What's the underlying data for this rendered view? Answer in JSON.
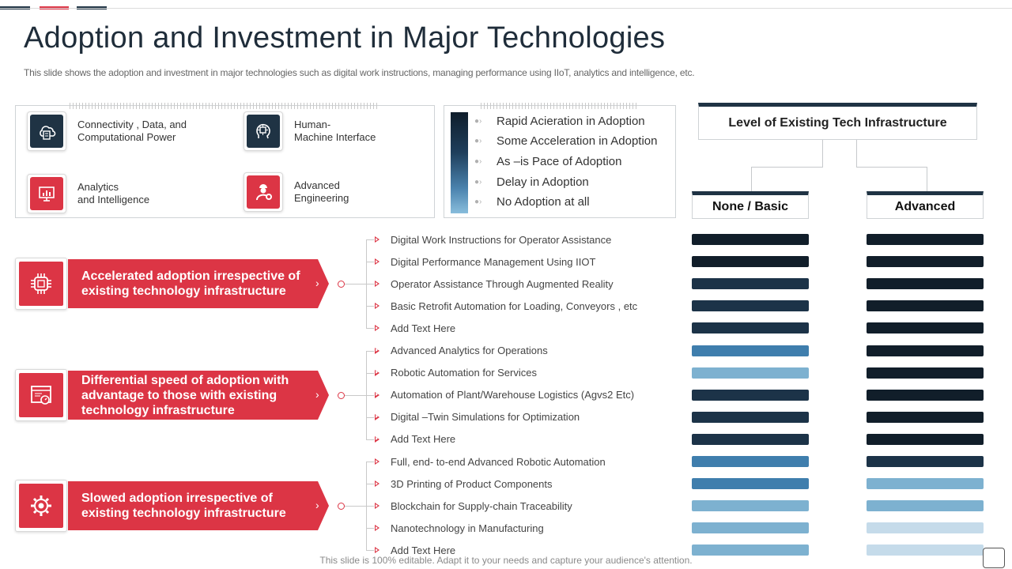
{
  "slide": {
    "title": "Adoption and Investment in Major Technologies",
    "subtitle": "This slide shows the adoption and investment in major technologies such as digital work instructions, managing performance using IIoT, analytics and intelligence, etc.",
    "footer": "This slide is 100% editable. Adapt it to your needs and capture your audience's attention."
  },
  "colors": {
    "accent_red": "#dc3545",
    "navy": "#1f3344",
    "level_1": "#111e2a",
    "level_2": "#1c3348",
    "level_3": "#3f7ead",
    "level_4": "#7db1d0",
    "level_5": "#c5dbea"
  },
  "tech_areas": [
    {
      "label": "Connectivity  , Data, and\nComputational Power",
      "icon": "cloud-document-icon"
    },
    {
      "label": "Human-\nMachine Interface",
      "icon": "head-chip-icon"
    },
    {
      "label": "Analytics\nand Intelligence",
      "icon": "monitor-chart-icon"
    },
    {
      "label": "Advanced\nEngineering",
      "icon": "engineer-gear-icon"
    }
  ],
  "legend": [
    {
      "label": "Rapid  Acieration in Adoption",
      "level": 1
    },
    {
      "label": "Some Acceleration in Adoption",
      "level": 2
    },
    {
      "label": "As –is Pace of Adoption",
      "level": 3
    },
    {
      "label": "Delay in Adoption",
      "level": 4
    },
    {
      "label": "No Adoption at all",
      "level": 5
    }
  ],
  "infrastructure": {
    "header": "Level of Existing Tech Infrastructure",
    "columns": [
      "None / Basic",
      "Advanced"
    ]
  },
  "categories": [
    {
      "label": "Accelerated adoption irrespective of existing technology infrastructure",
      "icon": "chip-icon",
      "items": [
        {
          "text": "Digital Work Instructions for Operator Assistance",
          "basic": 1,
          "advanced": 1
        },
        {
          "text": "Digital Performance  Management  Using IIOT",
          "basic": 1,
          "advanced": 1
        },
        {
          "text": "Operator Assistance Through  Augmented Reality",
          "basic": 2,
          "advanced": 1
        },
        {
          "text": "Basic Retrofit  Automation for Loading,  Conveyors   , etc",
          "basic": 2,
          "advanced": 1
        },
        {
          "text": "Add Text Here",
          "basic": 2,
          "advanced": 1
        }
      ]
    },
    {
      "label": "Differential speed of adoption with advantage to those with existing technology infrastructure",
      "icon": "dashboard-icon",
      "items": [
        {
          "text": "Advanced Analytics for Operations",
          "basic": 3,
          "advanced": 1
        },
        {
          "text": "Robotic Automation for Services",
          "basic": 4,
          "advanced": 1
        },
        {
          "text": "Automation of Plant/Warehouse Logistics (Agvs2 Etc)",
          "basic": 2,
          "advanced": 1
        },
        {
          "text": "Digital –Twin Simulations for Optimization",
          "basic": 2,
          "advanced": 1
        },
        {
          "text": "Add Text Here",
          "basic": 2,
          "advanced": 1
        }
      ]
    },
    {
      "label": "Slowed adoption irrespective of existing technology infrastructure",
      "icon": "gear-icon",
      "items": [
        {
          "text": "Full,  end- to-end Advanced  Robotic Automation",
          "basic": 3,
          "advanced": 2
        },
        {
          "text": "3D Printing of Product Components",
          "basic": 3,
          "advanced": 4
        },
        {
          "text": "Blockchain for Supply-chain Traceability",
          "basic": 4,
          "advanced": 4
        },
        {
          "text": "Nanotechnology  in Manufacturing",
          "basic": 4,
          "advanced": 5
        },
        {
          "text": "Add Text Here",
          "basic": 4,
          "advanced": 5
        }
      ]
    }
  ]
}
